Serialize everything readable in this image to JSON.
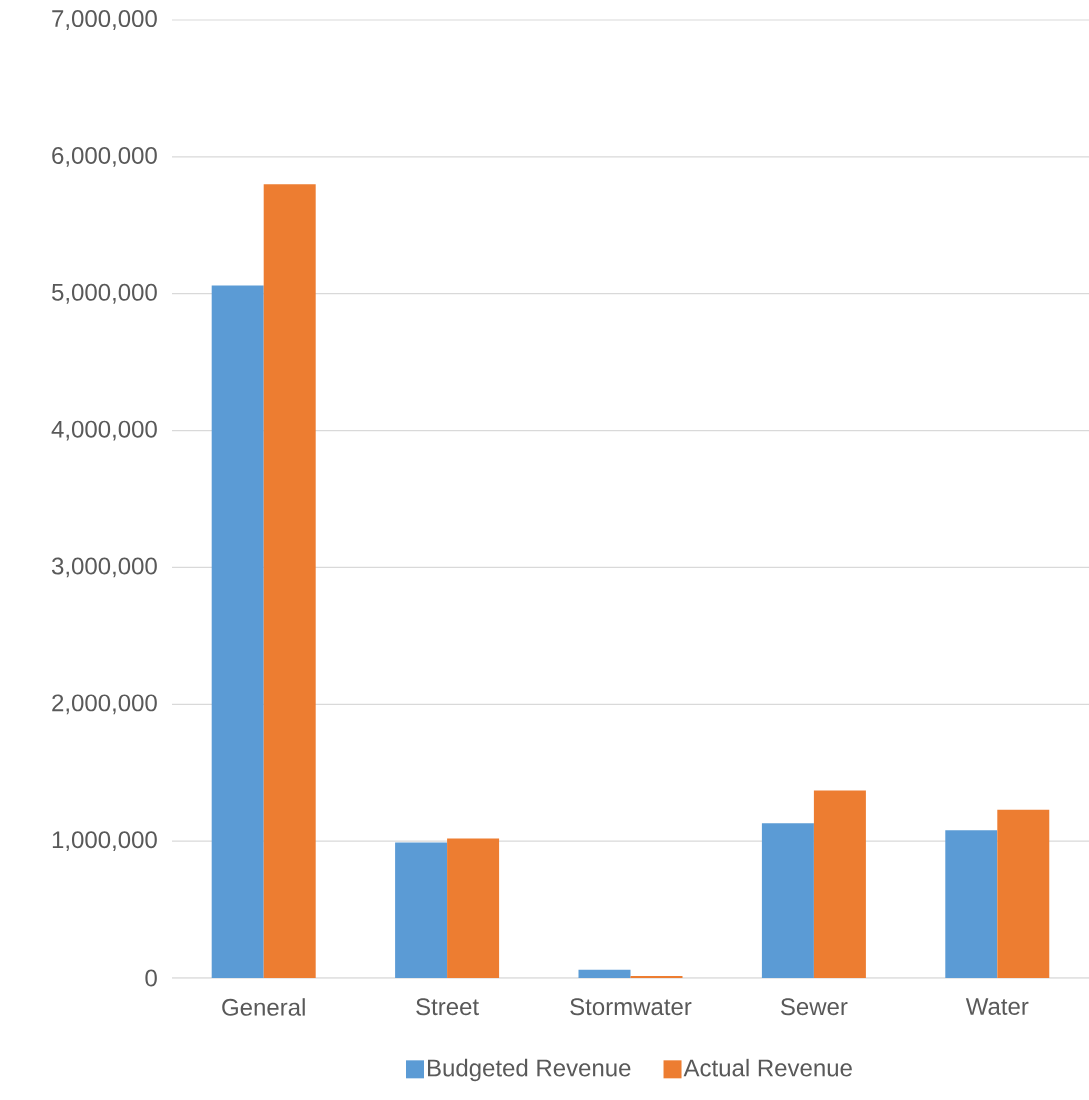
{
  "chart_data": {
    "type": "bar",
    "categories": [
      "General",
      "Street",
      "Stormwater",
      "Sewer",
      "Water"
    ],
    "series": [
      {
        "name": "Budgeted Revenue",
        "color": "#5b9bd5",
        "values": [
          5060000,
          990000,
          60000,
          1130000,
          1080000
        ]
      },
      {
        "name": "Actual Revenue",
        "color": "#ed7d31",
        "values": [
          5800000,
          1020000,
          15000,
          1370000,
          1230000
        ]
      }
    ],
    "ylim": [
      0,
      7000000
    ],
    "yticks": [
      {
        "value": 0,
        "label": "0"
      },
      {
        "value": 1000000,
        "label": "1,000,000"
      },
      {
        "value": 2000000,
        "label": "2,000,000"
      },
      {
        "value": 3000000,
        "label": "3,000,000"
      },
      {
        "value": 4000000,
        "label": "4,000,000"
      },
      {
        "value": 5000000,
        "label": "5,000,000"
      },
      {
        "value": 6000000,
        "label": "6,000,000"
      },
      {
        "value": 7000000,
        "label": "7,000,000"
      }
    ],
    "grid": "y",
    "legend": "bottom"
  }
}
